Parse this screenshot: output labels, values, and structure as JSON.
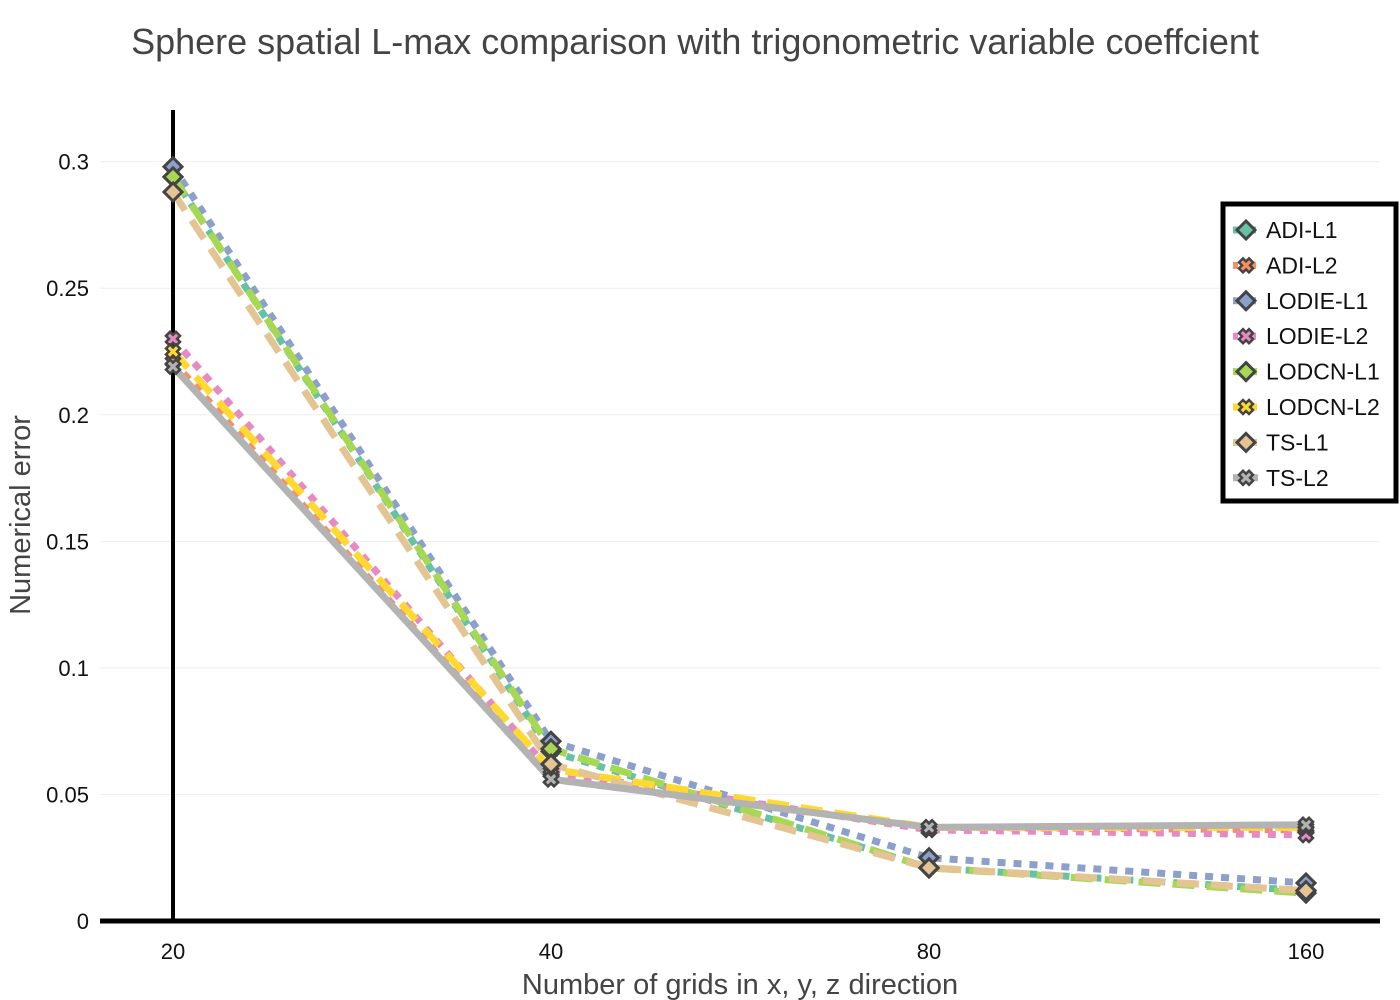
{
  "chart_data": {
    "type": "line",
    "title": "Sphere spatial L-max comparison with trigonometric variable coeffcient",
    "xlabel": "Number of grids in x, y, z direction",
    "ylabel": "Numerical error",
    "x": [
      20,
      40,
      80,
      160
    ],
    "x_tick_labels": [
      "20",
      "40",
      "80",
      "160"
    ],
    "y_ticks": [
      0,
      0.05,
      0.1,
      0.15,
      0.2,
      0.25,
      0.3
    ],
    "y_tick_labels": [
      "0",
      "0.05",
      "0.1",
      "0.15",
      "0.2",
      "0.25",
      "0.3"
    ],
    "ylim": [
      0,
      0.32
    ],
    "grid": true,
    "legend_position": "top-right",
    "series": [
      {
        "name": "ADI-L1",
        "values": [
          0.294,
          0.067,
          0.021,
          0.012
        ],
        "color": "#66c2a5",
        "marker": "diamond",
        "dash": "dot"
      },
      {
        "name": "ADI-L2",
        "values": [
          0.221,
          0.056,
          0.037,
          0.036
        ],
        "color": "#fc8d62",
        "marker": "x",
        "dash": "dot"
      },
      {
        "name": "LODIE-L1",
        "values": [
          0.298,
          0.071,
          0.025,
          0.015
        ],
        "color": "#8da0cb",
        "marker": "diamond",
        "dash": "dot"
      },
      {
        "name": "LODIE-L2",
        "values": [
          0.23,
          0.059,
          0.036,
          0.034
        ],
        "color": "#e78ac3",
        "marker": "x",
        "dash": "dot"
      },
      {
        "name": "LODCN-L1",
        "values": [
          0.294,
          0.068,
          0.021,
          0.011
        ],
        "color": "#a6d854",
        "marker": "diamond",
        "dash": "dash"
      },
      {
        "name": "LODCN-L2",
        "values": [
          0.225,
          0.06,
          0.037,
          0.037
        ],
        "color": "#ffd92f",
        "marker": "x",
        "dash": "dash"
      },
      {
        "name": "TS-L1",
        "values": [
          0.288,
          0.062,
          0.021,
          0.012
        ],
        "color": "#e5c494",
        "marker": "diamond",
        "dash": "dash"
      },
      {
        "name": "TS-L2",
        "values": [
          0.219,
          0.056,
          0.037,
          0.038
        ],
        "color": "#b3b3b3",
        "marker": "x",
        "dash": "solid"
      }
    ]
  }
}
